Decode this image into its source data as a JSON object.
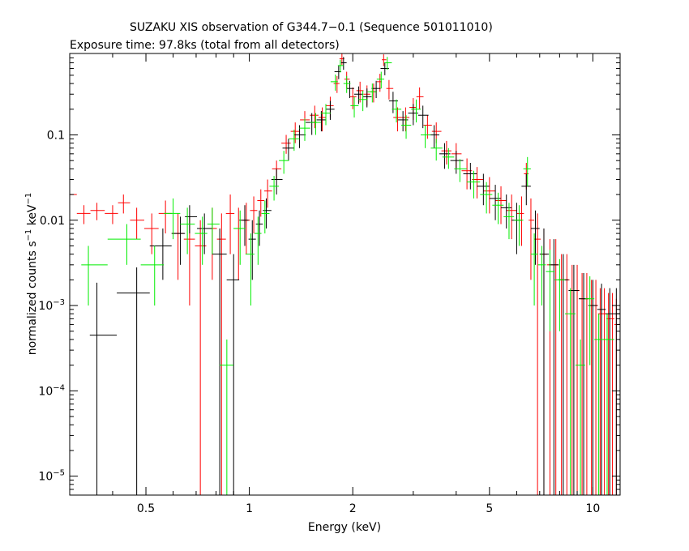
{
  "chart_data": {
    "type": "scatter",
    "title": "SUZAKU XIS observation of G344.7−0.1 (Sequence 501011010)",
    "subtitle": "Exposure time: 97.8ks (total from all detectors)",
    "xlabel": "Energy (keV)",
    "ylabel": {
      "base": "normalized counts s",
      "sup1": "−1",
      "mid": " keV",
      "sup2": "−1"
    },
    "xscale": "log",
    "yscale": "log",
    "xlim": [
      0.3,
      12.0
    ],
    "ylim": [
      6e-06,
      0.9
    ],
    "grid": false,
    "x_ticks": [
      {
        "value": 0.5,
        "label": "0.5"
      },
      {
        "value": 1,
        "label": "1"
      },
      {
        "value": 2,
        "label": "2"
      },
      {
        "value": 5,
        "label": "5"
      },
      {
        "value": 10,
        "label": "10"
      }
    ],
    "x_minor_ticks": [
      0.3,
      0.4,
      0.6,
      0.7,
      0.8,
      0.9,
      3,
      4,
      6,
      7,
      8,
      9
    ],
    "y_ticks": [
      {
        "value": 0.1,
        "label": "0.1"
      },
      {
        "value": 0.01,
        "label": "0.01"
      },
      {
        "value": 0.001,
        "label_base": "10",
        "label_exp": "−3"
      },
      {
        "value": 0.0001,
        "label_base": "10",
        "label_exp": "−4"
      },
      {
        "value": 1e-05,
        "label_base": "10",
        "label_exp": "−5"
      }
    ],
    "series": [
      {
        "color": "#ff0000",
        "x": [
          0.3,
          0.33,
          0.36,
          0.4,
          0.43,
          0.47,
          0.52,
          0.57,
          0.62,
          0.67,
          0.72,
          0.78,
          0.83,
          0.88,
          0.93,
          0.98,
          1.03,
          1.08,
          1.13,
          1.2,
          1.28,
          1.36,
          1.45,
          1.55,
          1.63,
          1.72,
          1.8,
          1.86,
          1.92,
          2.0,
          2.1,
          2.2,
          2.3,
          2.4,
          2.46,
          2.55,
          2.7,
          2.85,
          3.0,
          3.13,
          3.3,
          3.5,
          3.75,
          4.0,
          4.3,
          4.6,
          5.0,
          5.4,
          5.8,
          6.2,
          6.4,
          6.6,
          6.9,
          7.2,
          7.5,
          7.8,
          8.1,
          8.4,
          8.7,
          9.0,
          9.3,
          9.6,
          9.9,
          10.2,
          10.5,
          10.8,
          11.1,
          11.4,
          11.7
        ],
        "y": [
          0.02,
          0.012,
          0.013,
          0.012,
          0.016,
          0.01,
          0.008,
          0.012,
          0.007,
          0.006,
          0.005,
          0.008,
          0.006,
          0.012,
          0.008,
          0.01,
          0.013,
          0.017,
          0.022,
          0.04,
          0.08,
          0.11,
          0.15,
          0.17,
          0.16,
          0.22,
          0.4,
          0.78,
          0.45,
          0.28,
          0.33,
          0.3,
          0.32,
          0.42,
          0.76,
          0.35,
          0.16,
          0.16,
          0.21,
          0.28,
          0.13,
          0.11,
          0.065,
          0.06,
          0.038,
          0.03,
          0.022,
          0.017,
          0.013,
          0.012,
          0.035,
          0.01,
          0.006,
          0.004,
          0.003,
          0.003,
          0.002,
          0.002,
          0.0015,
          0.0015,
          0.0012,
          0.0012,
          0.001,
          0.001,
          0.0008,
          0.0008,
          0.0007,
          0.0007,
          0.0006
        ],
        "yerr": [
          0.008,
          0.003,
          0.003,
          0.003,
          0.004,
          0.004,
          0.004,
          0.005,
          0.005,
          0.005,
          0.005,
          0.006,
          0.006,
          0.008,
          0.006,
          0.006,
          0.006,
          0.006,
          0.008,
          0.01,
          0.02,
          0.03,
          0.04,
          0.05,
          0.05,
          0.06,
          0.09,
          0.12,
          0.1,
          0.08,
          0.09,
          0.08,
          0.08,
          0.1,
          0.12,
          0.09,
          0.05,
          0.05,
          0.06,
          0.08,
          0.04,
          0.03,
          0.02,
          0.02,
          0.015,
          0.012,
          0.01,
          0.008,
          0.007,
          0.007,
          0.012,
          0.008,
          0.006,
          0.004,
          0.003,
          0.003,
          0.002,
          0.002,
          0.0015,
          0.0015,
          0.0012,
          0.0012,
          0.001,
          0.001,
          0.0008,
          0.0008,
          0.0007,
          0.0007,
          0.0006
        ]
      },
      {
        "color": "#000000",
        "x": [
          0.36,
          0.47,
          0.56,
          0.63,
          0.67,
          0.74,
          0.82,
          0.9,
          0.97,
          1.02,
          1.07,
          1.12,
          1.2,
          1.3,
          1.4,
          1.52,
          1.62,
          1.72,
          1.82,
          1.88,
          1.96,
          2.08,
          2.2,
          2.34,
          2.48,
          2.62,
          2.8,
          3.0,
          3.2,
          3.45,
          3.7,
          4.0,
          4.4,
          4.8,
          5.2,
          5.6,
          6.0,
          6.4,
          6.8,
          7.2,
          7.7,
          8.2,
          8.8,
          9.4,
          10.0,
          10.6,
          11.2,
          11.7
        ],
        "y": [
          0.00045,
          0.0014,
          0.005,
          0.007,
          0.011,
          0.008,
          0.004,
          0.002,
          0.01,
          0.006,
          0.009,
          0.013,
          0.03,
          0.07,
          0.1,
          0.14,
          0.15,
          0.2,
          0.55,
          0.7,
          0.35,
          0.3,
          0.28,
          0.35,
          0.6,
          0.25,
          0.15,
          0.18,
          0.17,
          0.1,
          0.06,
          0.05,
          0.035,
          0.025,
          0.018,
          0.014,
          0.01,
          0.025,
          0.008,
          0.004,
          0.003,
          0.002,
          0.0015,
          0.0012,
          0.001,
          0.0009,
          0.0008,
          0.0008
        ],
        "yerr": [
          0.0014,
          0.0014,
          0.003,
          0.004,
          0.004,
          0.004,
          0.004,
          0.002,
          0.005,
          0.004,
          0.004,
          0.005,
          0.01,
          0.02,
          0.03,
          0.04,
          0.04,
          0.05,
          0.1,
          0.12,
          0.08,
          0.07,
          0.07,
          0.08,
          0.1,
          0.07,
          0.04,
          0.05,
          0.05,
          0.03,
          0.02,
          0.015,
          0.012,
          0.01,
          0.008,
          0.006,
          0.006,
          0.01,
          0.005,
          0.004,
          0.003,
          0.002,
          0.0015,
          0.0012,
          0.001,
          0.0009,
          0.0008,
          0.0008
        ]
      },
      {
        "color": "#00ee00",
        "x": [
          0.34,
          0.44,
          0.53,
          0.6,
          0.66,
          0.73,
          0.78,
          0.86,
          0.94,
          1.01,
          1.06,
          1.11,
          1.18,
          1.26,
          1.35,
          1.45,
          1.56,
          1.67,
          1.78,
          1.84,
          1.92,
          2.02,
          2.14,
          2.28,
          2.42,
          2.52,
          2.68,
          2.86,
          3.06,
          3.25,
          3.5,
          3.8,
          4.1,
          4.5,
          4.9,
          5.3,
          5.7,
          6.1,
          6.45,
          6.75,
          7.1,
          7.5,
          8.0,
          8.6,
          9.2,
          9.8,
          10.4,
          11.0
        ],
        "y": [
          0.003,
          0.006,
          0.003,
          0.012,
          0.009,
          0.007,
          0.009,
          0.0002,
          0.008,
          0.004,
          0.007,
          0.012,
          0.025,
          0.05,
          0.09,
          0.12,
          0.14,
          0.18,
          0.42,
          0.65,
          0.4,
          0.22,
          0.26,
          0.32,
          0.45,
          0.7,
          0.2,
          0.13,
          0.2,
          0.1,
          0.07,
          0.055,
          0.04,
          0.028,
          0.02,
          0.015,
          0.011,
          0.01,
          0.04,
          0.004,
          0.003,
          0.0025,
          0.002,
          0.0008,
          0.0002,
          0.0012,
          0.0004,
          0.0004
        ],
        "yerr": [
          0.002,
          0.003,
          0.002,
          0.006,
          0.005,
          0.004,
          0.005,
          0.0002,
          0.005,
          0.003,
          0.004,
          0.005,
          0.008,
          0.015,
          0.025,
          0.035,
          0.04,
          0.05,
          0.09,
          0.11,
          0.09,
          0.06,
          0.07,
          0.08,
          0.1,
          0.12,
          0.06,
          0.04,
          0.06,
          0.03,
          0.02,
          0.015,
          0.012,
          0.01,
          0.008,
          0.006,
          0.005,
          0.005,
          0.015,
          0.003,
          0.002,
          0.002,
          0.0015,
          0.0008,
          0.0002,
          0.001,
          0.0004,
          0.0004
        ]
      }
    ]
  }
}
